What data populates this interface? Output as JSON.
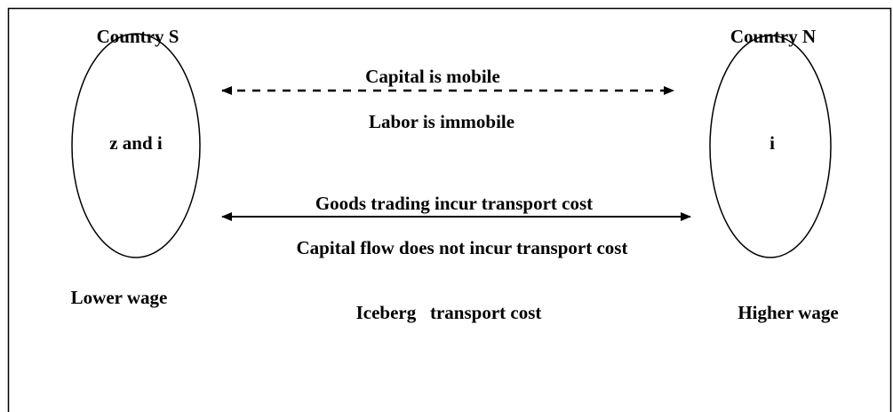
{
  "nodes": [
    {
      "title": "Country S",
      "label": "z and i",
      "note": "Lower wage"
    },
    {
      "title": "Country N",
      "label": "i",
      "note": "Higher wage"
    }
  ],
  "links": [
    {
      "above": "Capital is mobile",
      "below": "Labor is immobile"
    },
    {
      "above": "Goods trading incur transport cost",
      "below": "Capital flow does not incur transport cost"
    }
  ],
  "caption": "Iceberg   transport cost"
}
